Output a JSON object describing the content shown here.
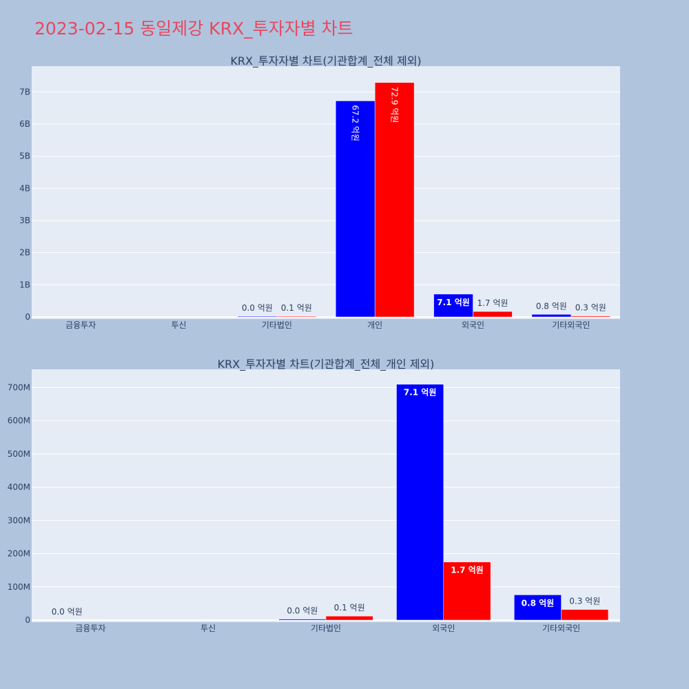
{
  "page_title": "2023-02-15 동일제강 KRX_투자자별 차트",
  "chart_data": [
    {
      "type": "bar",
      "title": "KRX_투자자별 차트(기관합계_전체 제외)",
      "categories": [
        "금융투자",
        "투신",
        "기타법인",
        "개인",
        "외국인",
        "기타외국인"
      ],
      "ylim": [
        0,
        7800000000
      ],
      "y_ticks": [
        0,
        1000000000,
        2000000000,
        3000000000,
        4000000000,
        5000000000,
        6000000000,
        7000000000
      ],
      "y_tick_labels": [
        "0",
        "1B",
        "2B",
        "3B",
        "4B",
        "5B",
        "6B",
        "7B"
      ],
      "grid": true,
      "series": [
        {
          "color": "#0000ff",
          "values": [
            0,
            0,
            3000000,
            6720000000,
            710000000,
            80000000
          ],
          "labels": [
            "",
            "",
            "0.0 억원",
            "67.2 억원",
            "7.1 억원",
            "0.8 억원"
          ]
        },
        {
          "color": "#ff0000",
          "values": [
            0,
            0,
            12000000,
            7290000000,
            170000000,
            30000000
          ],
          "labels": [
            "",
            "",
            "0.1 억원",
            "72.9 억원",
            "1.7 억원",
            "0.3 억원"
          ]
        }
      ]
    },
    {
      "type": "bar",
      "title": "KRX_투자자별 차트(기관합계_전체_개인 제외)",
      "categories": [
        "금융투자",
        "투신",
        "기타법인",
        "외국인",
        "기타외국인"
      ],
      "ylim": [
        0,
        755000000
      ],
      "y_ticks": [
        0,
        100000000,
        200000000,
        300000000,
        400000000,
        500000000,
        600000000,
        700000000
      ],
      "y_tick_labels": [
        "0",
        "100M",
        "200M",
        "300M",
        "400M",
        "500M",
        "600M",
        "700M"
      ],
      "grid": true,
      "series": [
        {
          "color": "#0000ff",
          "values": [
            0,
            0,
            3000000,
            710000000,
            76000000
          ],
          "labels": [
            "0.0 억원",
            "",
            "0.0 억원",
            "7.1 억원",
            "0.8 억원"
          ]
        },
        {
          "color": "#ff0000",
          "values": [
            0,
            0,
            12000000,
            175000000,
            32000000
          ],
          "labels": [
            "",
            "",
            "0.1 억원",
            "1.7 억원",
            "0.3 억원"
          ]
        }
      ]
    }
  ]
}
